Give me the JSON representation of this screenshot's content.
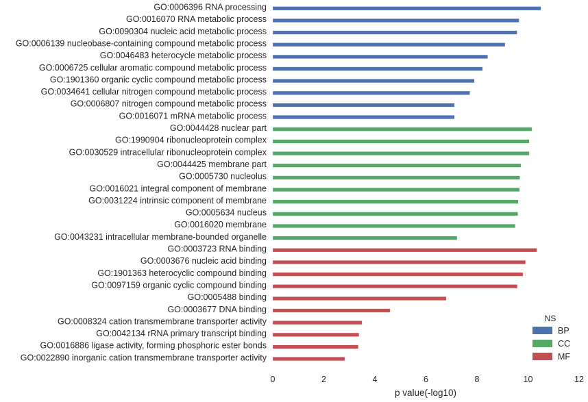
{
  "chart_data": {
    "type": "bar",
    "orientation": "horizontal",
    "xlabel": "p value(-log10)",
    "xlim": [
      0,
      12
    ],
    "xticks": [
      "0",
      "2",
      "4",
      "6",
      "8",
      "10",
      "12"
    ],
    "grid": false,
    "legend": {
      "title": "NS",
      "placement": "bottom-right",
      "entries": [
        {
          "name": "BP",
          "color": "#4c72b0"
        },
        {
          "name": "CC",
          "color": "#55a868"
        },
        {
          "name": "MF",
          "color": "#c44e52"
        }
      ]
    },
    "series": [
      {
        "name": "BP",
        "color": "#4c72b0",
        "categories": [
          "GO:0006396 RNA processing",
          "GO:0016070 RNA metabolic process",
          "GO:0090304 nucleic acid metabolic process",
          "GO:0006139 nucleobase-containing compound metabolic process",
          "GO:0046483 heterocycle metabolic process",
          "GO:0006725 cellular aromatic compound metabolic process",
          "GO:1901360 organic cyclic compound metabolic process",
          "GO:0034641 cellular nitrogen compound metabolic process",
          "GO:0006807 nitrogen compound metabolic process",
          "GO:0016071 mRNA metabolic process"
        ],
        "values": [
          10.5,
          9.65,
          9.57,
          9.1,
          8.42,
          8.22,
          7.9,
          7.72,
          7.12,
          7.12
        ]
      },
      {
        "name": "CC",
        "color": "#55a868",
        "categories": [
          "GO:0044428 nuclear part",
          "GO:1990904 ribonucleoprotein complex",
          "GO:0030529 intracellular ribonucleoprotein complex",
          "GO:0044425 membrane part",
          "GO:0005730 nucleolus",
          "GO:0016021 integral component of membrane",
          "GO:0031224 intrinsic component of membrane",
          "GO:0005634 nucleus",
          "GO:0016020 membrane",
          "GO:0043231 intracellular membrane-bounded organelle"
        ],
        "values": [
          10.15,
          10.05,
          10.05,
          9.72,
          9.68,
          9.67,
          9.62,
          9.6,
          9.5,
          7.22
        ]
      },
      {
        "name": "MF",
        "color": "#c44e52",
        "categories": [
          "GO:0003723 RNA binding",
          "GO:0003676 nucleic acid binding",
          "GO:1901363 heterocyclic compound binding",
          "GO:0097159 organic cyclic compound binding",
          "GO:0005488 binding",
          "GO:0003677 DNA binding",
          "GO:0008324 cation transmembrane transporter activity",
          "GO:0042134 rRNA primary transcript binding",
          "GO:0016886 ligase activity, forming phosphoric ester bonds",
          "GO:0022890 inorganic cation transmembrane transporter activity"
        ],
        "values": [
          10.35,
          9.9,
          9.8,
          9.58,
          6.8,
          4.6,
          3.5,
          3.38,
          3.35,
          2.82
        ]
      }
    ]
  }
}
